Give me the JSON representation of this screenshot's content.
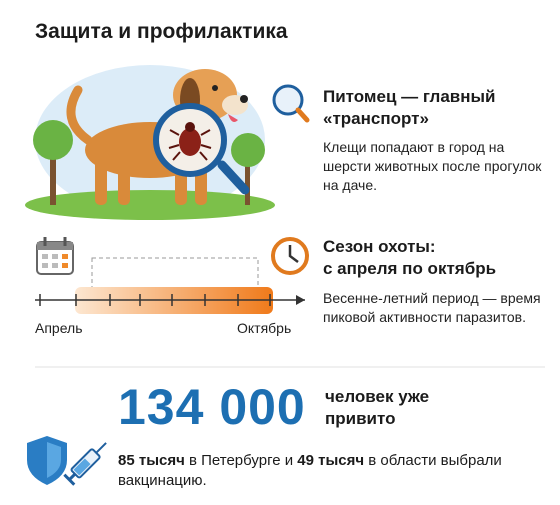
{
  "title": "Защита и профилактика",
  "pet_block": {
    "heading": [
      "Питомец — главный",
      "«транспорт»"
    ],
    "text": "Клещи попадают в город на шерсти животных после прогулок на даче."
  },
  "season_block": {
    "heading": [
      "Сезон охоты:",
      "с апреля по октябрь"
    ],
    "text": "Весенне-летний период — время пиковой активности паразитов.",
    "timeline": {
      "start": "Апрель",
      "end": "Октябрь"
    }
  },
  "vaccination": {
    "number": "134 000",
    "caption": "человек уже привито",
    "details": [
      {
        "text": "85 тысяч",
        "bold": true
      },
      {
        "text": " в Петербурге и ",
        "bold": false
      },
      {
        "text": "49 тысяч",
        "bold": true
      },
      {
        "text": " в области выбрали вакцинацию.",
        "bold": false
      }
    ]
  }
}
